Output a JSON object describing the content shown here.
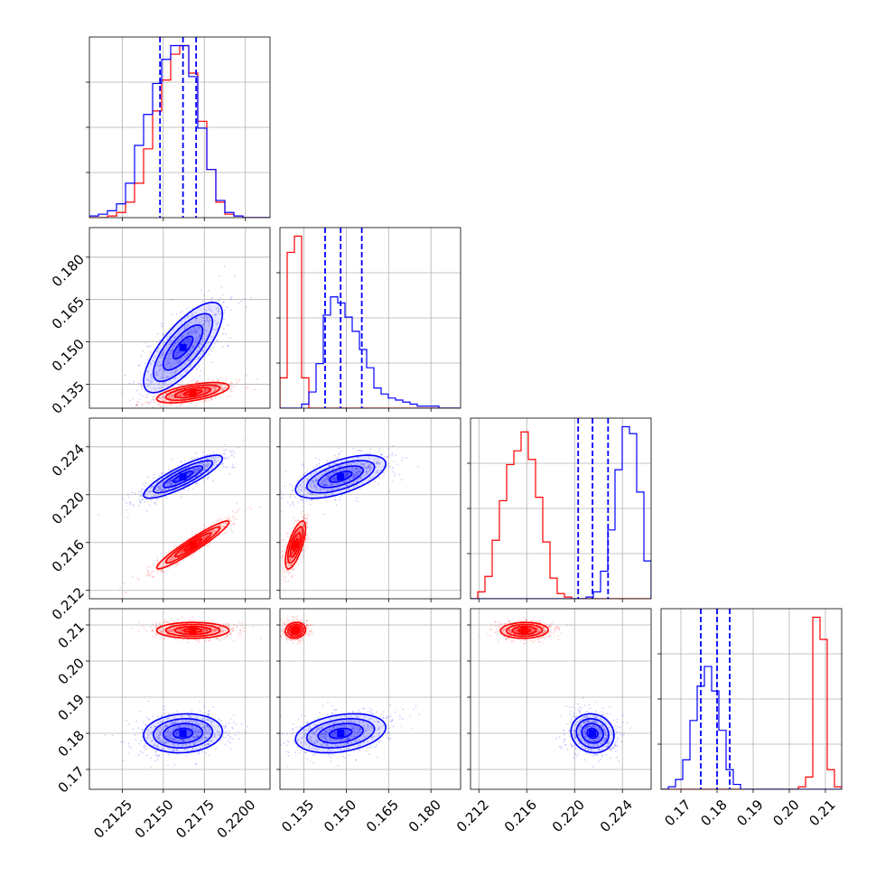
{
  "chart_data": {
    "type": "corner",
    "parameters": [
      "",
      "",
      "",
      ""
    ],
    "colors": {
      "series_a": "#0000ff",
      "series_b": "#ff0000",
      "grid": "#b0b0b0"
    },
    "grid": true,
    "series": [
      {
        "color": "#0000ff",
        "medians": [
          0.2162,
          0.148,
          0.2215,
          0.18
        ],
        "stds": [
          0.0012,
          0.008,
          0.0009,
          0.0027
        ],
        "quantiles": [
          [
            0.2148,
            0.2162,
            0.217
          ],
          [
            0.1425,
            0.148,
            0.1555
          ],
          [
            0.2203,
            0.2215,
            0.2228
          ],
          [
            0.1755,
            0.18,
            0.1835
          ]
        ],
        "corr": {
          "1-0": 0.75,
          "2-0": 0.85,
          "2-1": 0.6,
          "3-0": 0.1,
          "3-1": 0.3,
          "3-2": -0.1
        }
      },
      {
        "color": "#ff0000",
        "medians": [
          0.2168,
          0.132,
          0.2158,
          0.2085
        ],
        "stds": [
          0.0011,
          0.0018,
          0.001,
          0.0011
        ],
        "corr": {
          "1-0": 0.6,
          "2-0": 0.95,
          "2-1": 0.7,
          "3-0": 0.0,
          "3-1": 0.1,
          "3-2": 0.05
        }
      }
    ],
    "axes": [
      {
        "lim": [
          0.2105,
          0.2215
        ],
        "ticks": [
          0.2125,
          0.215,
          0.2175,
          0.22
        ],
        "tick_labels": [
          "0.2125",
          "0.2150",
          "0.2175",
          "0.2200"
        ]
      },
      {
        "lim": [
          0.1265,
          0.1905
        ],
        "ticks": [
          0.135,
          0.15,
          0.165,
          0.18
        ],
        "tick_labels": [
          "0.135",
          "0.150",
          "0.165",
          "0.180"
        ]
      },
      {
        "lim": [
          0.2113,
          0.2264
        ],
        "ticks": [
          0.212,
          0.216,
          0.22,
          0.224
        ],
        "tick_labels": [
          "0.212",
          "0.216",
          "0.220",
          "0.224"
        ]
      },
      {
        "lim": [
          0.1645,
          0.2145
        ],
        "ticks": [
          0.17,
          0.18,
          0.19,
          0.2,
          0.21
        ],
        "tick_labels": [
          "0.17",
          "0.18",
          "0.19",
          "0.20",
          "0.21"
        ]
      }
    ],
    "histograms": [
      {
        "bins": 20,
        "blue": [
          1,
          2,
          4,
          8,
          20,
          42,
          60,
          78,
          92,
          100,
          100,
          82,
          52,
          28,
          10,
          3,
          1,
          0,
          0,
          0
        ],
        "red": [
          0,
          0,
          1,
          3,
          9,
          20,
          40,
          62,
          80,
          95,
          100,
          84,
          56,
          28,
          9,
          2,
          1,
          0,
          0,
          0
        ]
      },
      {
        "bins": 25,
        "blue": [
          0,
          0,
          0,
          2,
          8,
          22,
          46,
          55,
          52,
          45,
          38,
          29,
          20,
          10,
          7,
          5,
          4,
          3,
          2,
          1,
          1,
          1,
          0,
          0,
          0
        ],
        "red": [
          15,
          77,
          85,
          15,
          0,
          0,
          0,
          0,
          0,
          0,
          0,
          0,
          0,
          0,
          0,
          0,
          0,
          0,
          0,
          0,
          0,
          0,
          0,
          0,
          0
        ]
      },
      {
        "bins": 25,
        "blue": [
          0,
          0,
          0,
          0,
          0,
          0,
          0,
          0,
          0,
          0,
          0,
          0,
          0,
          0,
          0,
          0,
          1,
          4,
          16,
          40,
          75,
          100,
          96,
          62,
          22
        ],
        "red": [
          0,
          4,
          13,
          34,
          57,
          78,
          86,
          97,
          81,
          59,
          33,
          12,
          3,
          1,
          0,
          0,
          0,
          0,
          0,
          0,
          0,
          0,
          0,
          0,
          0
        ]
      },
      {
        "bins": 25,
        "blue": [
          0,
          1,
          4,
          12,
          28,
          42,
          50,
          40,
          24,
          8,
          2,
          0,
          0,
          0,
          0,
          0,
          0,
          0,
          0,
          0,
          0,
          0,
          0,
          0,
          0
        ],
        "red": [
          0,
          0,
          0,
          0,
          0,
          0,
          0,
          0,
          0,
          0,
          0,
          0,
          0,
          0,
          0,
          0,
          0,
          0,
          0,
          1,
          5,
          70,
          61,
          8,
          1
        ]
      }
    ]
  }
}
